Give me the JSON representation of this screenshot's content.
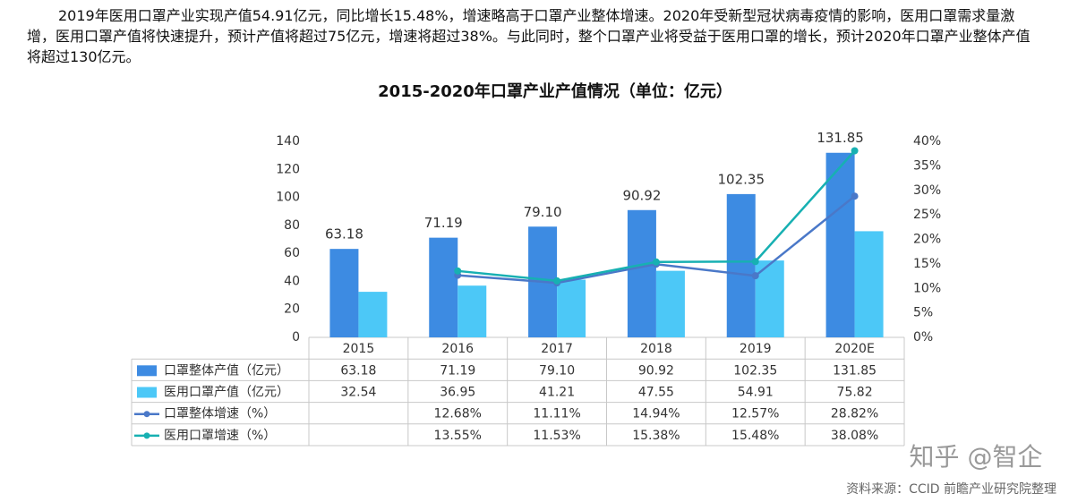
{
  "intro": "2019年医用口罩产业实现产值54.91亿元，同比增长15.48%，增速略高于口罩产业整体增速。2020年受新型冠状病毒疫情的影响，医用口罩需求量激增，医用口罩产值将快速提升，预计产值将超过75亿元，增速将超过38%。与此同时，整个口罩产业将受益于医用口罩的增长，预计2020年口罩产业整体产值将超过130亿元。",
  "chart_data": {
    "type": "bar",
    "title": "2015-2020年口罩产业产值情况（单位：亿元）",
    "categories": [
      "2015",
      "2016",
      "2017",
      "2018",
      "2019",
      "2020E"
    ],
    "series": [
      {
        "name": "口罩整体产值（亿元）",
        "type": "bar",
        "color": "#3d8be2",
        "values": [
          63.18,
          71.19,
          79.1,
          90.92,
          102.35,
          131.85
        ],
        "value_labels": [
          "63.18",
          "71.19",
          "79.10",
          "90.92",
          "102.35",
          "131.85"
        ]
      },
      {
        "name": "医用口罩产值（亿元）",
        "type": "bar",
        "color": "#4cc8f7",
        "values": [
          32.54,
          36.95,
          41.21,
          47.55,
          54.91,
          75.82
        ]
      },
      {
        "name": "口罩整体增速（%）",
        "type": "line",
        "axis": "y2",
        "color": "#4a78c8",
        "values": [
          null,
          12.68,
          11.11,
          14.94,
          12.57,
          28.82
        ],
        "value_labels": [
          null,
          "12.68%",
          "11.11%",
          "14.94%",
          "12.57%",
          "28.82%"
        ]
      },
      {
        "name": "医用口罩增速（%）",
        "type": "line",
        "axis": "y2",
        "color": "#17b0b2",
        "values": [
          null,
          13.55,
          11.53,
          15.38,
          15.48,
          38.08
        ],
        "value_labels": [
          null,
          "13.55%",
          "11.53%",
          "15.38%",
          "15.48%",
          "38.08%"
        ]
      }
    ],
    "ylim": [
      0,
      140
    ],
    "yticks": [
      0,
      20,
      40,
      60,
      80,
      100,
      120,
      140
    ],
    "y2lim": [
      0,
      40
    ],
    "y2ticks": [
      {
        "value": 0,
        "label": "0%"
      },
      {
        "value": 5,
        "label": "5%"
      },
      {
        "value": 10,
        "label": "10%"
      },
      {
        "value": 15,
        "label": "15%"
      },
      {
        "value": 20,
        "label": "20%"
      },
      {
        "value": 25,
        "label": "25%"
      },
      {
        "value": 30,
        "label": "30%"
      },
      {
        "value": 35,
        "label": "35%"
      },
      {
        "value": 40,
        "label": "40%"
      }
    ]
  },
  "credit": "知乎 @智企",
  "source": "资料来源：CCID 前瞻产业研究院整理"
}
